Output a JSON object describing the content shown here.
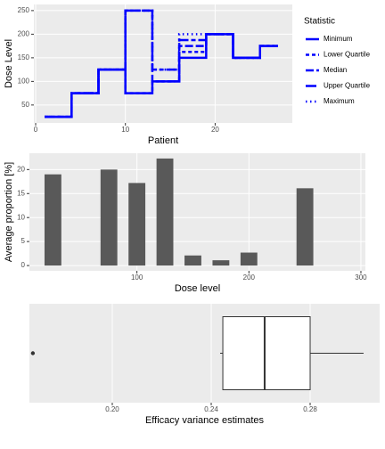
{
  "chart_data": [
    {
      "type": "line",
      "step": "hv",
      "x_label": "Patient",
      "y_label": "Dose Level",
      "x": [
        1,
        2,
        3,
        4,
        5,
        6,
        7,
        8,
        9,
        10,
        11,
        12,
        13,
        14,
        15,
        16,
        17,
        18,
        19,
        20,
        21,
        22,
        23,
        24,
        25,
        26,
        27
      ],
      "series": [
        {
          "name": "Minimum",
          "color": "#0000ff",
          "linetype": "solid",
          "values": [
            25,
            25,
            25,
            75,
            75,
            75,
            125,
            125,
            125,
            75,
            75,
            75,
            100,
            100,
            100,
            150,
            150,
            150,
            200,
            200,
            200,
            150,
            150,
            150,
            175,
            175,
            175
          ]
        },
        {
          "name": "Lower Quartile",
          "color": "#0000ff",
          "linetype": "dashed",
          "values": [
            25,
            25,
            25,
            75,
            75,
            75,
            125,
            125,
            125,
            75,
            75,
            75,
            100,
            100,
            100,
            162.5,
            162.5,
            162.5,
            200,
            200,
            200,
            150,
            150,
            150,
            175,
            175,
            175
          ]
        },
        {
          "name": "Median",
          "color": "#0000ff",
          "linetype": "longdash",
          "values": [
            25,
            25,
            25,
            75,
            75,
            75,
            125,
            125,
            125,
            250,
            250,
            250,
            100,
            100,
            100,
            175,
            175,
            175,
            200,
            200,
            200,
            150,
            150,
            150,
            175,
            175,
            175
          ]
        },
        {
          "name": "Upper Quartile",
          "color": "#0000ff",
          "linetype": "twodash",
          "values": [
            25,
            25,
            25,
            75,
            75,
            75,
            125,
            125,
            125,
            250,
            250,
            250,
            125,
            125,
            125,
            187.5,
            187.5,
            187.5,
            200,
            200,
            200,
            150,
            150,
            150,
            175,
            175,
            175
          ]
        },
        {
          "name": "Maximum",
          "color": "#0000ff",
          "linetype": "dotted",
          "values": [
            25,
            25,
            25,
            75,
            75,
            75,
            125,
            125,
            125,
            250,
            250,
            250,
            125,
            125,
            125,
            200,
            200,
            200,
            200,
            200,
            200,
            150,
            150,
            150,
            175,
            175,
            175
          ]
        }
      ],
      "xlim": [
        -0.2,
        28.6
      ],
      "xticks": [
        0,
        10,
        20
      ],
      "ylim": [
        12,
        263
      ],
      "yticks": [
        50,
        100,
        150,
        200,
        250
      ],
      "grid": true,
      "legend_title": "Statistic",
      "legend": "right"
    },
    {
      "type": "bar",
      "x_label": "Dose level",
      "y_label": "Average proportion [%]",
      "x": [
        25,
        75,
        100,
        125,
        150,
        175,
        200,
        250
      ],
      "values": [
        19,
        20,
        17.2,
        22.3,
        2.1,
        1.1,
        2.7,
        16.1
      ],
      "color": "#595959",
      "xlim": [
        4,
        304
      ],
      "xticks": [
        100,
        200,
        300
      ],
      "ylim": [
        -1.1,
        23.4
      ],
      "yticks": [
        0,
        5,
        10,
        15,
        20
      ],
      "grid": true
    },
    {
      "type": "boxplot",
      "orientation": "horizontal",
      "x_label": "Efficacy variance estimates",
      "box": {
        "whisker_low": 0.2436,
        "q1": 0.2447,
        "median": 0.2616,
        "q3": 0.28,
        "whisker_high": 0.3016
      },
      "outliers": [
        0.1679
      ],
      "color": "#333333",
      "xlim": [
        0.1665,
        0.3081
      ],
      "xticks": [
        {
          "value": 0.2,
          "label": "0.20"
        },
        {
          "value": 0.24,
          "label": "0.24"
        },
        {
          "value": 0.28,
          "label": "0.28"
        }
      ],
      "grid": true
    }
  ]
}
